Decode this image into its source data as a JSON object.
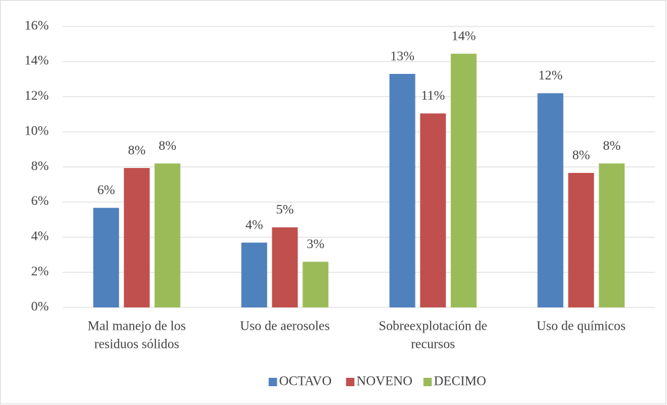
{
  "chart_data": {
    "type": "bar",
    "categories": [
      [
        "Mal manejo de los",
        "residuos sólidos"
      ],
      [
        "Uso de aerosoles"
      ],
      [
        "Sobreexplotación de",
        "recursos"
      ],
      [
        "Uso de químicos"
      ]
    ],
    "series": [
      {
        "name": "OCTAVO",
        "color": "#4f81bd",
        "values": [
          5.67,
          3.69,
          13.3,
          12.2
        ],
        "value_labels": [
          "6%",
          "4%",
          "13%",
          "12%"
        ]
      },
      {
        "name": "NOVENO",
        "color": "#c0504d",
        "values": [
          7.94,
          4.56,
          11.05,
          7.66
        ],
        "value_labels": [
          "8%",
          "5%",
          "11%",
          "8%"
        ]
      },
      {
        "name": "DECIMO",
        "color": "#9bbb59",
        "values": [
          8.2,
          2.6,
          14.45,
          8.2
        ],
        "value_labels": [
          "8%",
          "3%",
          "14%",
          "8%"
        ]
      }
    ],
    "ylim": [
      0,
      16
    ],
    "yticks": [
      {
        "value": 0,
        "label": "0%"
      },
      {
        "value": 2,
        "label": "2%"
      },
      {
        "value": 4,
        "label": "4%"
      },
      {
        "value": 6,
        "label": "6%"
      },
      {
        "value": 8,
        "label": "8%"
      },
      {
        "value": 10,
        "label": "10%"
      },
      {
        "value": 12,
        "label": "12%"
      },
      {
        "value": 14,
        "label": "14%"
      },
      {
        "value": 16,
        "label": "16%"
      }
    ],
    "grid": true,
    "legend": "bottom"
  }
}
